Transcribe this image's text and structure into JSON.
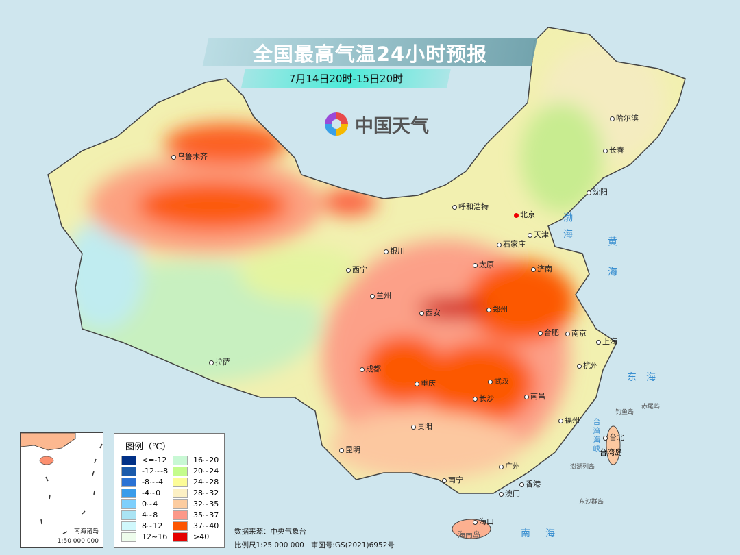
{
  "header": {
    "title": "全国最高气温24小时预报",
    "subtitle": "7月14日20时-15日20时",
    "logo_text": "中国天气"
  },
  "cities": [
    {
      "name": "乌鲁木齐"
    },
    {
      "name": "哈尔滨"
    },
    {
      "name": "长春"
    },
    {
      "name": "沈阳"
    },
    {
      "name": "呼和浩特"
    },
    {
      "name": "北京",
      "capital": true
    },
    {
      "name": "天津"
    },
    {
      "name": "石家庄"
    },
    {
      "name": "太原"
    },
    {
      "name": "济南"
    },
    {
      "name": "银川"
    },
    {
      "name": "西宁"
    },
    {
      "name": "兰州"
    },
    {
      "name": "西安"
    },
    {
      "name": "郑州"
    },
    {
      "name": "合肥"
    },
    {
      "name": "南京"
    },
    {
      "name": "上海"
    },
    {
      "name": "武汉"
    },
    {
      "name": "杭州"
    },
    {
      "name": "成都"
    },
    {
      "name": "重庆"
    },
    {
      "name": "长沙"
    },
    {
      "name": "南昌"
    },
    {
      "name": "拉萨"
    },
    {
      "name": "贵阳"
    },
    {
      "name": "福州"
    },
    {
      "name": "台北"
    },
    {
      "name": "昆明"
    },
    {
      "name": "南宁"
    },
    {
      "name": "广州"
    },
    {
      "name": "香港"
    },
    {
      "name": "澳门"
    },
    {
      "name": "海口"
    }
  ],
  "islands": [
    "台湾岛",
    "海南岛",
    "钓鱼岛",
    "赤尾屿",
    "澎湖列岛",
    "东沙群岛"
  ],
  "seas": [
    "渤海",
    "黄海",
    "东海",
    "台湾海峡",
    "南海"
  ],
  "legend": {
    "title": "图例（℃）",
    "items": [
      {
        "label": "<=-12",
        "color": "#003087"
      },
      {
        "label": "-12~-8",
        "color": "#1a5aab"
      },
      {
        "label": "-8~-4",
        "color": "#2a72d4"
      },
      {
        "label": "-4~0",
        "color": "#3a9cea"
      },
      {
        "label": "0~4",
        "color": "#7ecffc"
      },
      {
        "label": "4~8",
        "color": "#aae4f4"
      },
      {
        "label": "8~12",
        "color": "#d0f8fc"
      },
      {
        "label": "12~16",
        "color": "#eefcec"
      },
      {
        "label": "16~20",
        "color": "#c8f8d4"
      },
      {
        "label": "20~24",
        "color": "#c4fc8c"
      },
      {
        "label": "24~28",
        "color": "#fcfc98"
      },
      {
        "label": "28~32",
        "color": "#fcf0c4"
      },
      {
        "label": "32~35",
        "color": "#fccca0"
      },
      {
        "label": "35~37",
        "color": "#fc9888"
      },
      {
        "label": "37~40",
        "color": "#fc5400"
      },
      {
        "label": ">40",
        "color": "#e40000"
      }
    ]
  },
  "inset": {
    "name": "南海诸岛",
    "scale": "1:50 000 000"
  },
  "footer": {
    "source": "数据来源：中央气象台",
    "scale": "比例尺1:25 000 000",
    "approval": "审图号:GS(2021)6952号"
  }
}
